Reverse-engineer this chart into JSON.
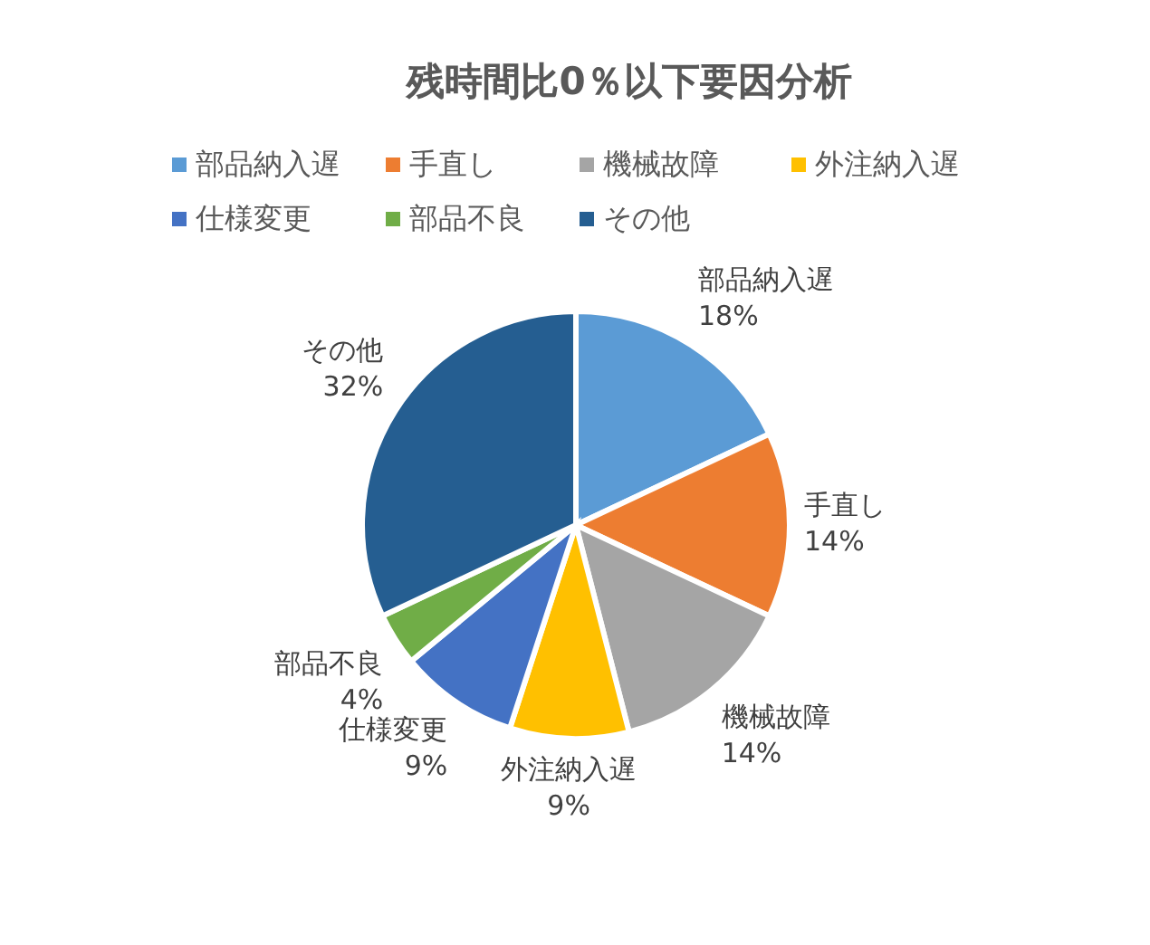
{
  "chart_data": {
    "type": "pie",
    "title": "残時間比0％以下要因分析",
    "categories": [
      "部品納入遅",
      "手直し",
      "機械故障",
      "外注納入遅",
      "仕様変更",
      "部品不良",
      "その他"
    ],
    "values": [
      18,
      14,
      14,
      9,
      9,
      4,
      32
    ],
    "colors": [
      "#5b9bd5",
      "#ed7d31",
      "#a5a5a5",
      "#ffc000",
      "#4472c4",
      "#70ad47",
      "#255e91"
    ],
    "value_labels": [
      "18%",
      "14%",
      "14%",
      "9%",
      "9%",
      "4%",
      "32%"
    ],
    "legend": "top"
  }
}
